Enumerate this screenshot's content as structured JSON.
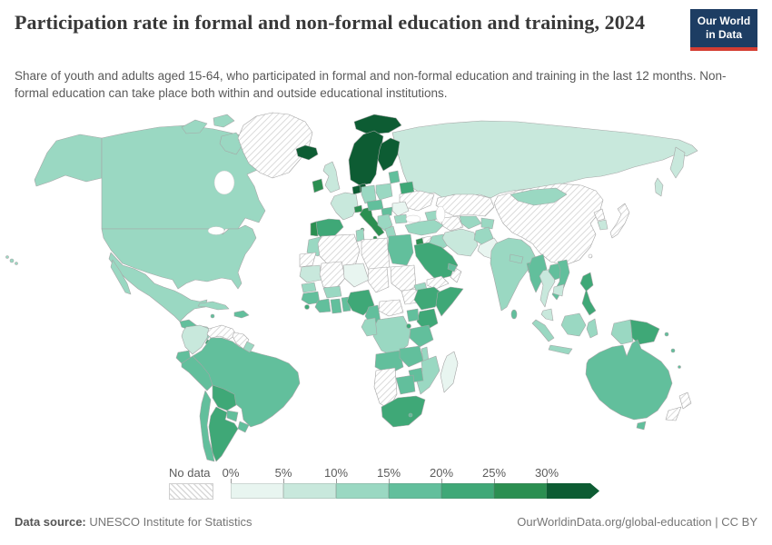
{
  "header": {
    "title": "Participation rate in formal and non-formal education and training, 2024",
    "subtitle": "Share of youth and adults aged 15-64, who participated in formal and non-formal education and training in the last 12 months. Non-formal education can take place both within and outside educational institutions.",
    "logo": {
      "line1": "Our World",
      "line2": "in Data",
      "bg": "#1d3d63",
      "stripe": "#d43d32"
    }
  },
  "footer": {
    "source_label": "Data source:",
    "source_value": "UNESCO Institute for Statistics",
    "right_text": "OurWorldinData.org/global-education | CC BY"
  },
  "chart_data": {
    "type": "choropleth",
    "title": "Participation rate in formal and non-formal education and training, 2024",
    "unit": "%",
    "legend": {
      "no_data_label": "No data",
      "thresholds": [
        "0%",
        "5%",
        "10%",
        "15%",
        "20%",
        "25%",
        "30%"
      ],
      "bin_order": [
        "0-5",
        "5-10",
        "10-15",
        "15-20",
        "20-25",
        "25-30",
        "30+"
      ],
      "bin_colors": {
        "0-5": "#e8f5f0",
        "5-10": "#c8e8dc",
        "10-15": "#9ad8c2",
        "15-20": "#62bf9c",
        "20-25": "#3fa877",
        "25-30": "#2b8f51",
        "30+": "#0d5c33"
      },
      "no_data_pattern": "gray-diagonal-hatch"
    },
    "regions": {
      "united-states": "10-15",
      "canada": "10-15",
      "greenland": "no-data",
      "mexico": "10-15",
      "guatemala": "15-20",
      "honduras-nicaragua": "10-15",
      "costa-rica-panama": "20-25",
      "cuba": "10-15",
      "hispaniola": "15-20",
      "jamaica": "15-20",
      "colombia": "5-10",
      "venezuela": "no-data",
      "guyana-suriname": "no-data",
      "french-guiana": "10-15",
      "ecuador": "15-20",
      "peru": "15-20",
      "brazil": "15-20",
      "bolivia": "20-25",
      "paraguay": "15-20",
      "uruguay": "15-20",
      "argentina": "20-25",
      "chile": "15-20",
      "iceland": "30+",
      "ireland": "25-30",
      "united-kingdom": "5-10",
      "norway-sweden": "30+",
      "svalbard": "30+",
      "finland": "30+",
      "denmark": "30+",
      "netherlands-belgium": "30+",
      "germany": "10-15",
      "poland": "10-15",
      "baltic-states": "15-20",
      "belarus": "20-25",
      "ukraine": "no-data",
      "france": "5-10",
      "spain": "20-25",
      "portugal": "25-30",
      "italy": "25-30",
      "switzerland": "25-30",
      "austria-czechia": "15-20",
      "hungary": "15-20",
      "romania": "0-5",
      "western-balkans": "10-15",
      "greece": "10-15",
      "bulgaria": "10-15",
      "russia": "5-10",
      "kazakhstan": "no-data",
      "turkmenistan": "no-data",
      "uzbekistan": "10-15",
      "kyrgyzstan-tajikistan": "10-15",
      "caucasus": "10-15",
      "turkey": "10-15",
      "syria": "no-data",
      "jordan-israel": "25-30",
      "iraq": "10-15",
      "iran": "5-10",
      "afghanistan": "10-15",
      "pakistan": "0-5",
      "india": "10-15",
      "nepal": "10-15",
      "bangladesh": "15-20",
      "sri-lanka": "15-20",
      "saudi-arabia": "20-25",
      "yemen": "no-data",
      "oman": "no-data",
      "united-arab-emirates": "15-20",
      "china": "no-data",
      "mongolia": "10-15",
      "taiwan": "no-data",
      "north-korea": "no-data",
      "south-korea": "5-10",
      "japan": "no-data",
      "myanmar": "15-20",
      "thailand": "5-10",
      "laos": "15-20",
      "vietnam": "15-20",
      "cambodia": "5-10",
      "malaysia": "5-10",
      "indonesia": "10-15",
      "philippines": "20-25",
      "papua-new-guinea": "20-25",
      "australia": "15-20",
      "new-zealand": "no-data",
      "pacific-islands": "15-20",
      "morocco": "10-15",
      "western-sahara": "no-data",
      "algeria": "no-data",
      "tunisia": "10-15",
      "libya": "no-data",
      "egypt": "15-20",
      "mauritania": "5-10",
      "mali": "no-data",
      "niger": "0-5",
      "chad": "no-data",
      "sudan": "no-data",
      "south-sudan": "no-data",
      "eritrea": "10-15",
      "senegal": "10-15",
      "guinea": "15-20",
      "sierra-leone": "20-25",
      "ivory-coast": "15-20",
      "ghana": "15-20",
      "togo-benin": "15-20",
      "burkina-faso": "10-15",
      "nigeria": "20-25",
      "cameroon": "15-20",
      "central-african-republic": "no-data",
      "ethiopia": "20-25",
      "somalia": "20-25",
      "kenya": "20-25",
      "uganda": "15-20",
      "dr-congo": "10-15",
      "congo-gabon": "10-15",
      "tanzania": "15-20",
      "rwanda-burundi": "20-25",
      "angola": "15-20",
      "zambia": "15-20",
      "malawi": "10-15",
      "mozambique": "10-15",
      "zimbabwe": "15-20",
      "botswana": "15-20",
      "namibia": "no-data",
      "south-africa": "20-25",
      "lesotho": "15-20",
      "madagascar": "0-5"
    }
  }
}
